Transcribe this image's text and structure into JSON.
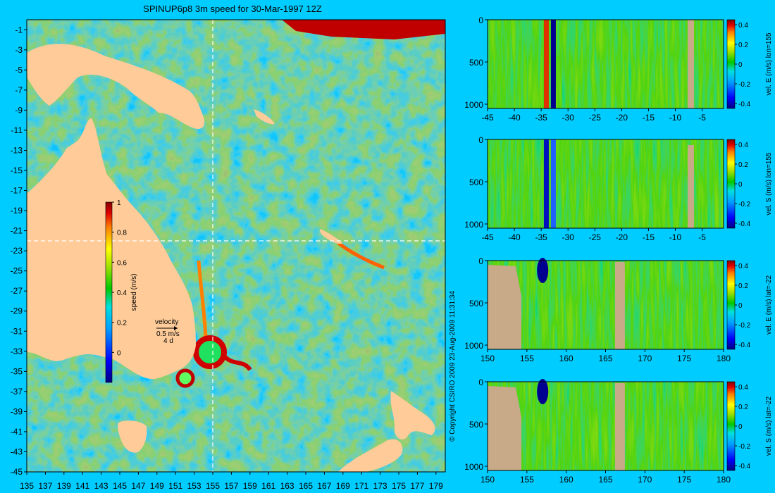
{
  "map": {
    "title": "SPINUP6p8 3m speed for 30-Mar-1997 12Z",
    "lon_ticks": [
      "135",
      "137",
      "139",
      "141",
      "143",
      "145",
      "147",
      "149",
      "151",
      "153",
      "155",
      "157",
      "159",
      "161",
      "163",
      "165",
      "167",
      "169",
      "171",
      "173",
      "175",
      "177",
      "179"
    ],
    "lat_ticks": [
      "-1",
      "-3",
      "-5",
      "-7",
      "-9",
      "-11",
      "-13",
      "-15",
      "-17",
      "-19",
      "-21",
      "-23",
      "-25",
      "-27",
      "-29",
      "-31",
      "-33",
      "-35",
      "-37",
      "-39",
      "-41",
      "-43",
      "-45"
    ],
    "section_lon": "155",
    "section_lat": "-22",
    "colorbar": {
      "label": "speed (m/s)",
      "ticks": [
        "1",
        "0.8",
        "0.6",
        "0.4",
        "0.2",
        "0"
      ]
    },
    "velocity_key": {
      "title": "velocity",
      "scale": "0.5 m/s",
      "days": "4 d"
    }
  },
  "copyright": "© Copyright CSIRO 2009   23-Aug-2009 11:31:34",
  "panels": [
    {
      "label": "vel. E (m/s) lon=155",
      "x_ticks": [
        "-45",
        "-40",
        "-35",
        "-30",
        "-25",
        "-20",
        "-15",
        "-10",
        "-5"
      ],
      "y_ticks": [
        "0",
        "500",
        "1000"
      ],
      "cb_ticks": [
        "0.4",
        "0.2",
        "0",
        "-0.2",
        "-0.4"
      ]
    },
    {
      "label": "vel. S (m/s) lon=155",
      "x_ticks": [
        "-45",
        "-40",
        "-35",
        "-30",
        "-25",
        "-20",
        "-15",
        "-10",
        "-5"
      ],
      "y_ticks": [
        "0",
        "500",
        "1000"
      ],
      "cb_ticks": [
        "0.4",
        "0.2",
        "0",
        "-0.2",
        "-0.4"
      ]
    },
    {
      "label": "vel. E (m/s) lat=-22",
      "x_ticks": [
        "150",
        "155",
        "160",
        "165",
        "170",
        "175",
        "180"
      ],
      "y_ticks": [
        "0",
        "500",
        "1000"
      ],
      "cb_ticks": [
        "0.4",
        "0.2",
        "0",
        "-0.2",
        "-0.4"
      ]
    },
    {
      "label": "vel. S (m/s) lat=-22",
      "x_ticks": [
        "150",
        "155",
        "160",
        "165",
        "170",
        "175",
        "180"
      ],
      "y_ticks": [
        "0",
        "500",
        "1000"
      ],
      "cb_ticks": [
        "0.4",
        "0.2",
        "0",
        "-0.2",
        "-0.4"
      ]
    }
  ],
  "colors": {
    "background": "#00ccff",
    "land": "#ffcc99",
    "section_land": "#c8aa88"
  },
  "chart_data": [
    {
      "type": "heatmap",
      "title": "SPINUP6p8 3m speed for 30-Mar-1997 12Z",
      "x_range": [
        135,
        180
      ],
      "y_range": [
        -45,
        0
      ],
      "x_ticks": [
        135,
        137,
        139,
        141,
        143,
        145,
        147,
        149,
        151,
        153,
        155,
        157,
        159,
        161,
        163,
        165,
        167,
        169,
        171,
        173,
        175,
        177,
        179
      ],
      "y_ticks": [
        -1,
        -3,
        -5,
        -7,
        -9,
        -11,
        -13,
        -15,
        -17,
        -19,
        -21,
        -23,
        -25,
        -27,
        -29,
        -31,
        -33,
        -35,
        -37,
        -39,
        -41,
        -43,
        -45
      ],
      "colorbar_label": "speed (m/s)",
      "colorbar_range": [
        -0.2,
        1.0
      ],
      "section_lines": {
        "lon": 155,
        "lat": -22
      }
    },
    {
      "type": "heatmap",
      "colorbar_label": "vel. E (m/s) lon=155",
      "x_range": [
        -45,
        -1
      ],
      "y_range": [
        1050,
        0
      ],
      "colorbar_range": [
        -0.45,
        0.45
      ]
    },
    {
      "type": "heatmap",
      "colorbar_label": "vel. S (m/s) lon=155",
      "x_range": [
        -45,
        -1
      ],
      "y_range": [
        1050,
        0
      ],
      "colorbar_range": [
        -0.45,
        0.45
      ]
    },
    {
      "type": "heatmap",
      "colorbar_label": "vel. E (m/s) lat=-22",
      "x_range": [
        150,
        180
      ],
      "y_range": [
        1050,
        0
      ],
      "colorbar_range": [
        -0.45,
        0.45
      ]
    },
    {
      "type": "heatmap",
      "colorbar_label": "vel. S (m/s) lat=-22",
      "x_range": [
        150,
        180
      ],
      "y_range": [
        1050,
        0
      ],
      "colorbar_range": [
        -0.45,
        0.45
      ]
    }
  ]
}
